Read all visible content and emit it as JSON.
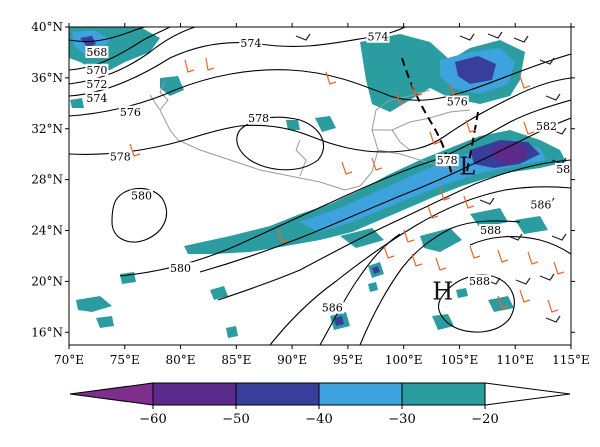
{
  "map": {
    "lat_ticks": [
      {
        "deg": 16,
        "label": "16°N"
      },
      {
        "deg": 20,
        "label": "20°N"
      },
      {
        "deg": 24,
        "label": "24°N"
      },
      {
        "deg": 28,
        "label": "28°N"
      },
      {
        "deg": 32,
        "label": "32°N"
      },
      {
        "deg": 36,
        "label": "36°N"
      },
      {
        "deg": 40,
        "label": "40°N"
      }
    ],
    "lon_ticks": [
      {
        "deg": 70,
        "label": "70°E"
      },
      {
        "deg": 75,
        "label": "75°E"
      },
      {
        "deg": 80,
        "label": "80°E"
      },
      {
        "deg": 85,
        "label": "85°E"
      },
      {
        "deg": 90,
        "label": "90°E"
      },
      {
        "deg": 95,
        "label": "95°E"
      },
      {
        "deg": 100,
        "label": "100°E"
      },
      {
        "deg": 105,
        "label": "105°E"
      },
      {
        "deg": 110,
        "label": "110°E"
      },
      {
        "deg": 115,
        "label": "115°E"
      }
    ],
    "extent": {
      "lon_min": 70,
      "lon_max": 115,
      "lat_min": 15,
      "lat_max": 40
    },
    "contour_labels": [
      {
        "text": "568",
        "lon": 72.5,
        "lat": 37.8
      },
      {
        "text": "570",
        "lon": 72.5,
        "lat": 36.4
      },
      {
        "text": "572",
        "lon": 72.5,
        "lat": 35.3
      },
      {
        "text": "574",
        "lon": 72.5,
        "lat": 34.2
      },
      {
        "text": "574",
        "lon": 86.3,
        "lat": 38.5
      },
      {
        "text": "574",
        "lon": 97.7,
        "lat": 39.0
      },
      {
        "text": "576",
        "lon": 75.5,
        "lat": 33.1
      },
      {
        "text": "576",
        "lon": 104.8,
        "lat": 33.9
      },
      {
        "text": "578",
        "lon": 74.6,
        "lat": 29.6
      },
      {
        "text": "578",
        "lon": 87.0,
        "lat": 32.6
      },
      {
        "text": "578",
        "lon": 103.9,
        "lat": 29.3
      },
      {
        "text": "580",
        "lon": 76.5,
        "lat": 26.5
      },
      {
        "text": "580",
        "lon": 80.0,
        "lat": 20.8
      },
      {
        "text": "582",
        "lon": 112.8,
        "lat": 32.0
      },
      {
        "text": "58",
        "lon": 114.3,
        "lat": 28.6
      },
      {
        "text": "586",
        "lon": 112.3,
        "lat": 25.8
      },
      {
        "text": "586",
        "lon": 93.6,
        "lat": 17.7
      },
      {
        "text": "588",
        "lon": 107.8,
        "lat": 23.8
      },
      {
        "text": "588",
        "lon": 106.8,
        "lat": 19.8
      }
    ],
    "center_markers": [
      {
        "text": "H",
        "lon": 103.5,
        "lat": 19.3
      },
      {
        "text": "L",
        "lon": 105.7,
        "lat": 29.1
      }
    ]
  },
  "colorbar": {
    "tick_labels": [
      "−60",
      "−50",
      "−40",
      "−30",
      "−20"
    ],
    "under_color": "#7e2f8e",
    "over_color": "#ffffff",
    "bins": [
      {
        "color": "#5c2a8a"
      },
      {
        "color": "#383f9a"
      },
      {
        "color": "#3da2dd"
      },
      {
        "color": "#2b9da1"
      }
    ]
  },
  "colors": {
    "band_teal": "#2b9da1",
    "band_blue": "#3da2dd",
    "band_navy": "#383f9a",
    "band_purple": "#5c2a8a",
    "contour": "#000000",
    "border": "#9a9a9a",
    "wind_orange": "#e8652f",
    "wind_black": "#222222"
  }
}
